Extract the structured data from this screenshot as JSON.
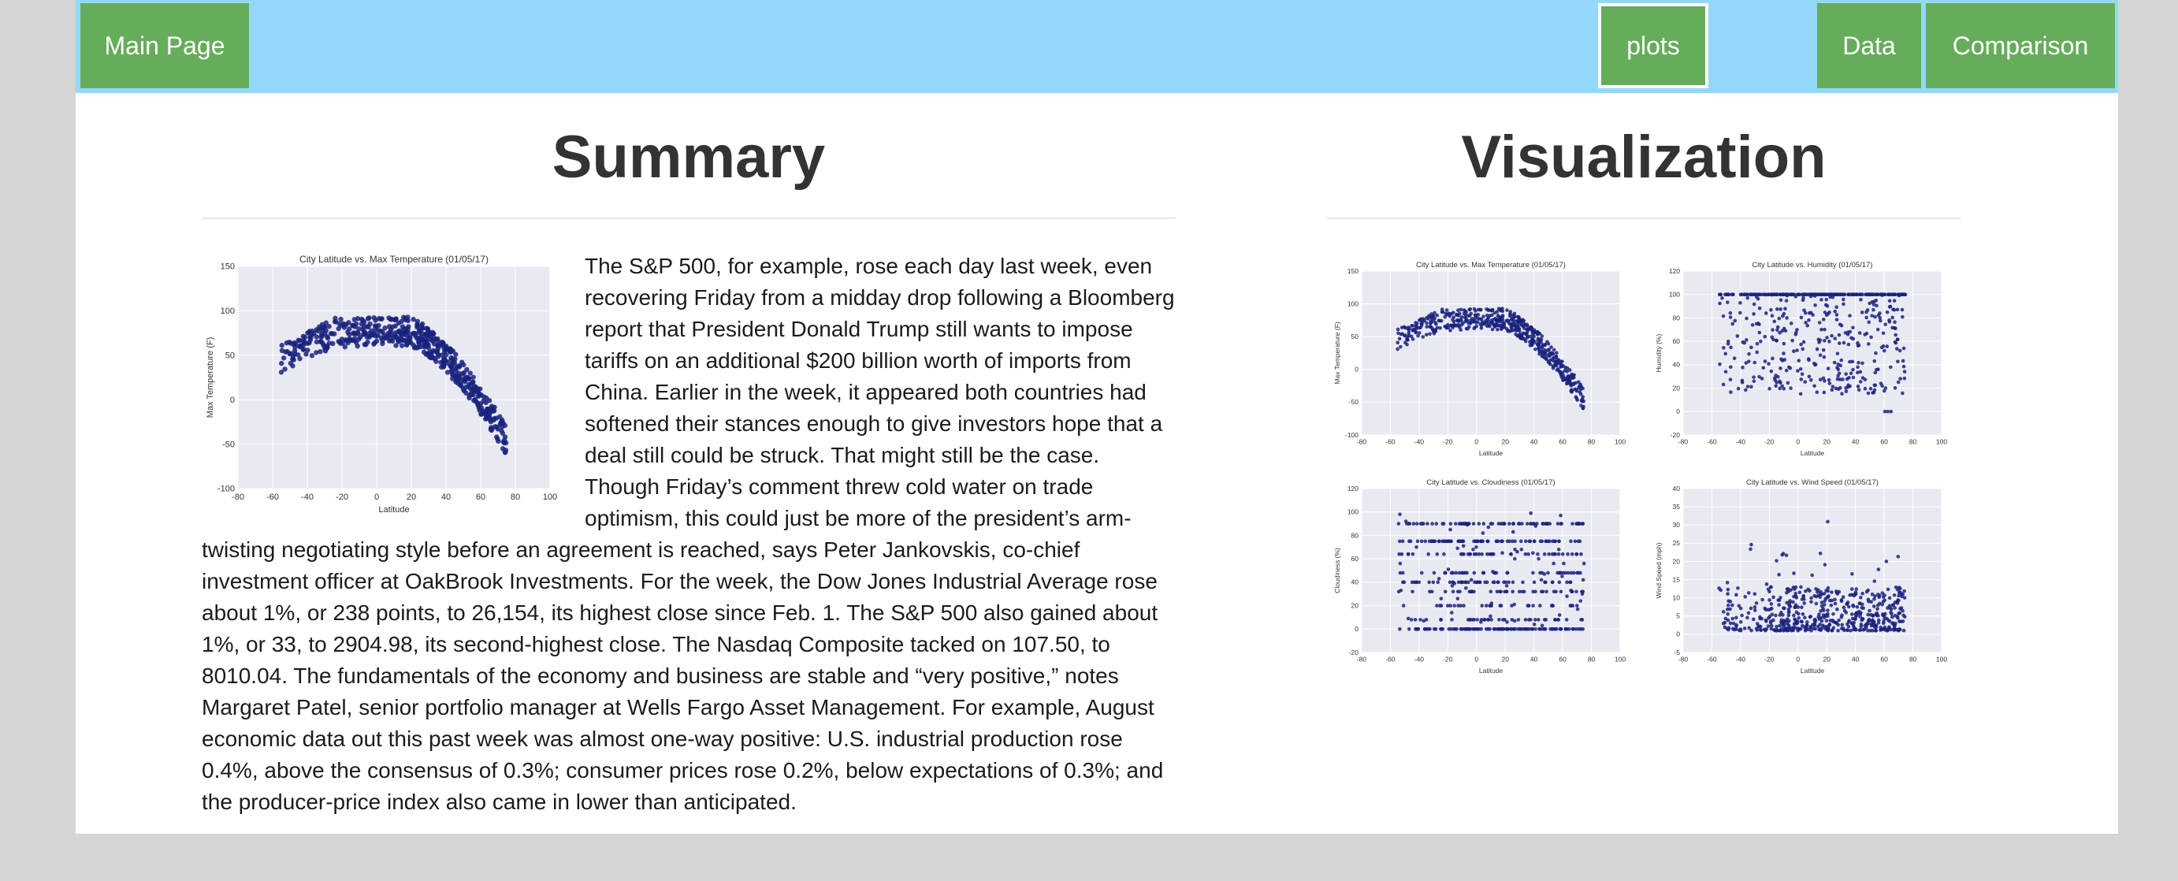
{
  "nav": {
    "main": "Main Page",
    "plots": "plots",
    "data": "Data",
    "comparison": "Comparison"
  },
  "summary": {
    "title": "Summary",
    "text": "The S&P 500, for example, rose each day last week, even recovering Friday from a midday drop following a Bloomberg report that President Donald Trump still wants to impose tariffs on an additional $200 billion worth of imports from China. Earlier in the week, it appeared both countries had softened their stances enough to give investors hope that a deal still could be struck. That might still be the case. Though Friday’s comment threw cold water on trade optimism, this could just be more of the president’s arm-twisting negotiating style before an agreement is reached, says Peter Jankovskis, co-chief investment officer at OakBrook Investments. For the week, the Dow Jones Industrial Average rose about 1%, or 238 points, to 26,154, its highest close since Feb. 1. The S&P 500 also gained about 1%, or 33, to 2904.98, its second-highest close. The Nasdaq Composite tacked on 107.50, to 8010.04. The fundamentals of the economy and business are stable and “very positive,” notes Margaret Patel, senior portfolio manager at Wells Fargo Asset Management. For example, August economic data out this past week was almost one-way positive: U.S. industrial production rose 0.4%, above the consensus of 0.3%; consumer prices rose 0.2%, below expectations of 0.3%; and the producer-price index also came in lower than anticipated."
  },
  "visualization": {
    "title": "Visualization"
  },
  "colors": {
    "nav_bg": "#93d8fa",
    "button_bg": "#66ad5b",
    "plot_bg": "#e9e9f1",
    "point": "#1a237e"
  },
  "chart_data": [
    {
      "id": "temp",
      "type": "scatter",
      "title": "City Latitude vs. Max Temperature (01/05/17)",
      "xlabel": "Latitude",
      "ylabel": "Max Temperature (F)",
      "xlim": [
        -80,
        100
      ],
      "ylim": [
        -100,
        150
      ],
      "xticks": [
        -80,
        -60,
        -40,
        -20,
        0,
        20,
        40,
        60,
        80,
        100
      ],
      "yticks": [
        -100,
        -50,
        0,
        50,
        100,
        150
      ],
      "n": 540,
      "pattern": "Inverted arch: about 40-60 F near -60 to -40 latitude, peaking near 80-100 F around -20 to 10, falling to roughly -60 F near 75 latitude"
    },
    {
      "id": "humidity",
      "type": "scatter",
      "title": "City Latitude vs. Humidity (01/05/17)",
      "xlabel": "Latitude",
      "ylabel": "Humidity (%)",
      "xlim": [
        -80,
        100
      ],
      "ylim": [
        -20,
        120
      ],
      "xticks": [
        -80,
        -60,
        -40,
        -20,
        0,
        20,
        40,
        60,
        80,
        100
      ],
      "yticks": [
        -20,
        0,
        20,
        40,
        60,
        80,
        100,
        120
      ],
      "n": 540,
      "pattern": "Widely scattered between 10 and 100 %, dense band at 100 %, small cluster at 0 % near 55-70 latitude"
    },
    {
      "id": "cloudiness",
      "type": "scatter",
      "title": "City Latitude vs. Cloudiness (01/05/17)",
      "xlabel": "Latitude",
      "ylabel": "Cloudiness (%)",
      "xlim": [
        -80,
        100
      ],
      "ylim": [
        -20,
        120
      ],
      "xticks": [
        -80,
        -60,
        -40,
        -20,
        0,
        20,
        40,
        60,
        80,
        100
      ],
      "yticks": [
        -20,
        0,
        20,
        40,
        60,
        80,
        100,
        120
      ],
      "n": 540,
      "pattern": "Points on discrete levels (0, 20, 40, 75, 90 %); dense rows at 0, 75 and 90 %"
    },
    {
      "id": "wind",
      "type": "scatter",
      "title": "City Latitude vs. Wind Speed (01/05/17)",
      "xlabel": "Latitude",
      "ylabel": "Wind Speed (mph)",
      "xlim": [
        -80,
        100
      ],
      "ylim": [
        -5,
        40
      ],
      "xticks": [
        -80,
        -60,
        -40,
        -20,
        0,
        20,
        40,
        60,
        80,
        100
      ],
      "yticks": [
        -5,
        0,
        5,
        10,
        15,
        20,
        25,
        30,
        35,
        40
      ],
      "n": 540,
      "pattern": "Mostly 1-12 mph, denser near 2-7 mph, occasional values up to about 35 mph at 50-70 latitude"
    }
  ]
}
